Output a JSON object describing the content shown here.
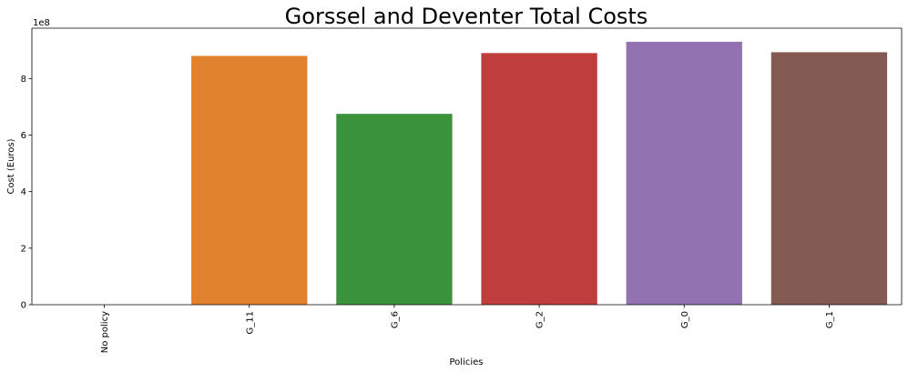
{
  "chart_data": {
    "type": "bar",
    "title": "Gorssel and Deventer Total Costs",
    "xlabel": "Policies",
    "ylabel": "Cost (Euros)",
    "y_offset_label": "1e8",
    "categories": [
      "No policy",
      "G_11",
      "G_6",
      "G_2",
      "G_0",
      "G_1"
    ],
    "values": [
      0,
      880000000,
      675000000,
      890000000,
      930000000,
      893000000
    ],
    "colors": [
      "#1f77b4",
      "#e0812e",
      "#3a923a",
      "#c03d3e",
      "#9372b2",
      "#845b53"
    ],
    "y_ticks": [
      0,
      200000000,
      400000000,
      600000000,
      800000000
    ],
    "y_tick_labels": [
      "0",
      "2",
      "4",
      "6",
      "8"
    ],
    "ylim": [
      0,
      978000000
    ],
    "grid": false,
    "legend": false
  }
}
